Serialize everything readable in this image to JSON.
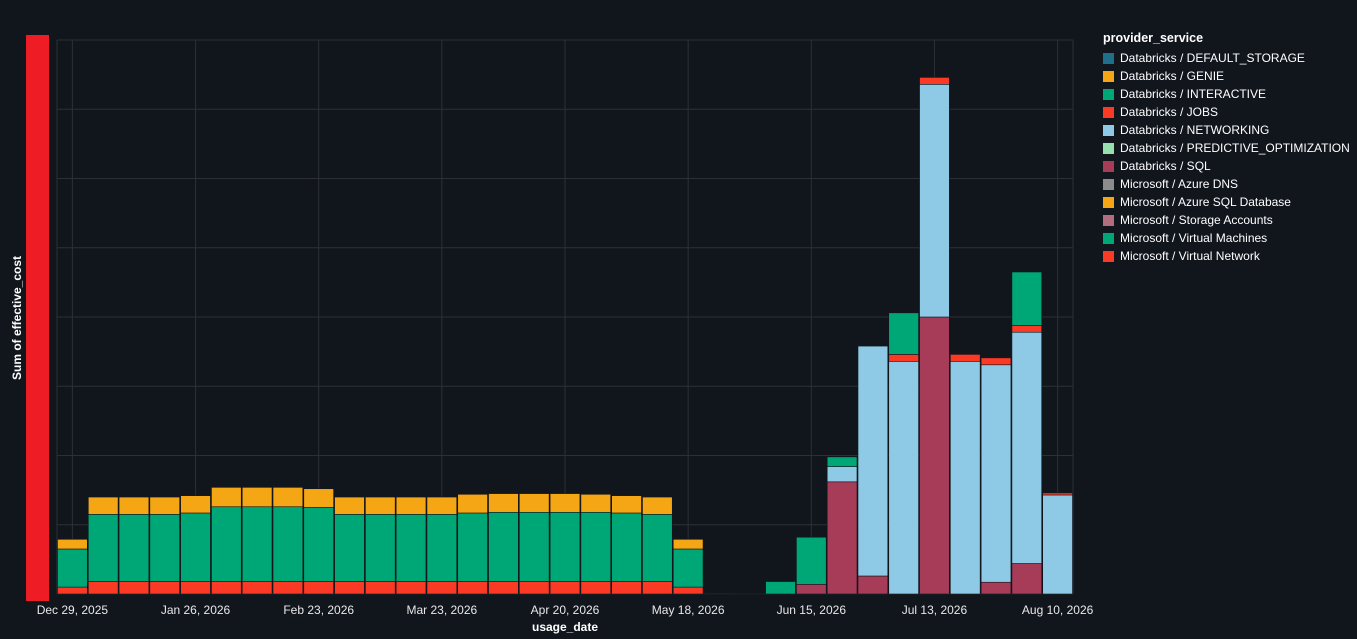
{
  "chart_data": {
    "type": "bar",
    "stacked": true,
    "xlabel": "usage_date",
    "ylabel": "Sum of effective_cost",
    "legend_title": "provider_service",
    "legend_position": "top-right",
    "grid": true,
    "x_tick_labels": [
      "Dec 29, 2025",
      "Jan 26, 2026",
      "Feb 23, 2026",
      "Mar 23, 2026",
      "Apr 20, 2026",
      "May 18, 2026",
      "Jun 15, 2026",
      "Jul 13, 2026",
      "Aug 10, 2026"
    ],
    "categories": [
      "2025-12-29",
      "2026-01-05",
      "2026-01-12",
      "2026-01-19",
      "2026-01-26",
      "2026-02-02",
      "2026-02-09",
      "2026-02-16",
      "2026-02-23",
      "2026-03-02",
      "2026-03-09",
      "2026-03-16",
      "2026-03-23",
      "2026-03-30",
      "2026-04-06",
      "2026-04-13",
      "2026-04-20",
      "2026-04-27",
      "2026-05-04",
      "2026-05-11",
      "2026-05-18",
      "2026-05-25",
      "2026-06-01",
      "2026-06-08",
      "2026-06-15",
      "2026-06-22",
      "2026-06-29",
      "2026-07-06",
      "2026-07-13",
      "2026-07-20",
      "2026-07-27",
      "2026-08-03",
      "2026-08-10"
    ],
    "ylim": [
      0,
      8
    ],
    "series": [
      {
        "name": "Databricks / DEFAULT_STORAGE",
        "color": "#1f6f8b",
        "values": [
          0,
          0,
          0,
          0,
          0,
          0,
          0,
          0,
          0,
          0,
          0,
          0,
          0,
          0,
          0,
          0,
          0,
          0,
          0,
          0,
          0,
          0,
          0,
          0,
          0,
          0,
          0,
          0,
          0,
          0,
          0,
          0,
          0
        ]
      },
      {
        "name": "Databricks / GENIE",
        "color": "#f5a614",
        "values": [
          0,
          0,
          0,
          0,
          0,
          0,
          0,
          0,
          0,
          0,
          0,
          0,
          0,
          0,
          0,
          0,
          0,
          0,
          0,
          0,
          0,
          0,
          0,
          0,
          0,
          0,
          0,
          0,
          0,
          0,
          0,
          0,
          0
        ]
      },
      {
        "name": "Microsoft / Virtual Network",
        "color": "#fb3a26",
        "values": [
          0.1,
          0.18,
          0.18,
          0.18,
          0.18,
          0.18,
          0.18,
          0.18,
          0.18,
          0.18,
          0.18,
          0.18,
          0.18,
          0.18,
          0.18,
          0.18,
          0.18,
          0.18,
          0.18,
          0.18,
          0.1,
          0,
          0,
          0,
          0,
          0,
          0,
          0,
          0,
          0,
          0,
          0,
          0
        ]
      },
      {
        "name": "Databricks / SQL",
        "color": "#a63c57",
        "values": [
          0,
          0,
          0,
          0,
          0,
          0,
          0,
          0,
          0,
          0,
          0,
          0,
          0,
          0,
          0,
          0,
          0,
          0,
          0,
          0,
          0,
          0,
          0,
          0,
          0.14,
          1.62,
          0.26,
          0,
          4.0,
          0,
          0.17,
          0.44,
          0
        ]
      },
      {
        "name": "Databricks / NETWORKING",
        "color": "#8ecae6",
        "values": [
          0,
          0,
          0,
          0,
          0,
          0,
          0,
          0,
          0,
          0,
          0,
          0,
          0,
          0,
          0,
          0,
          0,
          0,
          0,
          0,
          0,
          0,
          0,
          0,
          0,
          0.22,
          3.32,
          3.36,
          3.36,
          3.36,
          3.14,
          3.34,
          1.43
        ]
      },
      {
        "name": "Databricks / JOBS",
        "color": "#fb3a26",
        "values": [
          0,
          0,
          0,
          0,
          0,
          0,
          0,
          0,
          0,
          0,
          0,
          0,
          0,
          0,
          0,
          0,
          0,
          0,
          0,
          0,
          0,
          0,
          0,
          0,
          0,
          0,
          0,
          0.1,
          0.1,
          0.1,
          0.1,
          0.1,
          0.03
        ]
      },
      {
        "name": "Microsoft / Virtual Machines",
        "color": "#00a776",
        "values": [
          0.55,
          0.97,
          0.97,
          0.97,
          0.99,
          1.08,
          1.08,
          1.08,
          1.07,
          0.97,
          0.97,
          0.97,
          0.97,
          0.99,
          1.0,
          1.0,
          1.0,
          1.0,
          0.99,
          0.97,
          0.55,
          0,
          0.01,
          0.18,
          0.68,
          0.14,
          0,
          0.6,
          0,
          0,
          0,
          0.77,
          0
        ]
      },
      {
        "name": "Microsoft / Azure SQL Database",
        "color": "#f5a614",
        "values": [
          0.14,
          0.25,
          0.25,
          0.25,
          0.25,
          0.28,
          0.28,
          0.28,
          0.27,
          0.25,
          0.25,
          0.25,
          0.25,
          0.27,
          0.27,
          0.27,
          0.27,
          0.26,
          0.25,
          0.25,
          0.14,
          0,
          0,
          0,
          0,
          0,
          0,
          0,
          0,
          0,
          0,
          0,
          0
        ]
      },
      {
        "name": "Databricks / INTERACTIVE",
        "color": "#00a776",
        "values": [
          0,
          0,
          0,
          0,
          0,
          0,
          0,
          0,
          0,
          0,
          0,
          0,
          0,
          0,
          0,
          0,
          0,
          0,
          0,
          0,
          0,
          0,
          0,
          0,
          0,
          0,
          0,
          0,
          0,
          0,
          0,
          0,
          0
        ]
      },
      {
        "name": "Databricks / PREDICTIVE_OPTIMIZATION",
        "color": "#98dfb0",
        "values": [
          0,
          0,
          0,
          0,
          0,
          0,
          0,
          0,
          0,
          0,
          0,
          0,
          0,
          0,
          0,
          0,
          0,
          0,
          0,
          0,
          0,
          0,
          0,
          0,
          0,
          0,
          0,
          0,
          0,
          0,
          0,
          0,
          0
        ]
      },
      {
        "name": "Microsoft / Azure DNS",
        "color": "#8c8c8c",
        "values": [
          0,
          0,
          0,
          0,
          0,
          0,
          0,
          0,
          0,
          0,
          0,
          0,
          0,
          0,
          0,
          0,
          0,
          0,
          0,
          0,
          0,
          0,
          0,
          0,
          0,
          0,
          0,
          0,
          0,
          0,
          0,
          0,
          0
        ]
      },
      {
        "name": "Microsoft / Storage Accounts",
        "color": "#b26e7e",
        "values": [
          0,
          0,
          0,
          0,
          0,
          0,
          0,
          0,
          0,
          0,
          0,
          0,
          0,
          0,
          0,
          0,
          0,
          0,
          0,
          0,
          0,
          0.01,
          0,
          0,
          0,
          0,
          0,
          0,
          0,
          0,
          0,
          0,
          0
        ]
      }
    ]
  },
  "legend": {
    "title": "provider_service",
    "items": [
      {
        "label": "Databricks / DEFAULT_STORAGE",
        "color": "#1f6f8b"
      },
      {
        "label": "Databricks / GENIE",
        "color": "#f5a614"
      },
      {
        "label": "Databricks / INTERACTIVE",
        "color": "#00a776"
      },
      {
        "label": "Databricks / JOBS",
        "color": "#fb3a26"
      },
      {
        "label": "Databricks / NETWORKING",
        "color": "#8ecae6"
      },
      {
        "label": "Databricks / PREDICTIVE_OPTIMIZATION",
        "color": "#98dfb0"
      },
      {
        "label": "Databricks / SQL",
        "color": "#a63c57"
      },
      {
        "label": "Microsoft / Azure DNS",
        "color": "#8c8c8c"
      },
      {
        "label": "Microsoft / Azure SQL Database",
        "color": "#f5a614"
      },
      {
        "label": "Microsoft / Storage Accounts",
        "color": "#b26e7e"
      },
      {
        "label": "Microsoft / Virtual Machines",
        "color": "#00a776"
      },
      {
        "label": "Microsoft / Virtual Network",
        "color": "#fb3a26"
      }
    ]
  },
  "colors": {
    "background": "#11161d",
    "grid": "#2c3036",
    "y_axis_bar": "#ee1c25"
  }
}
